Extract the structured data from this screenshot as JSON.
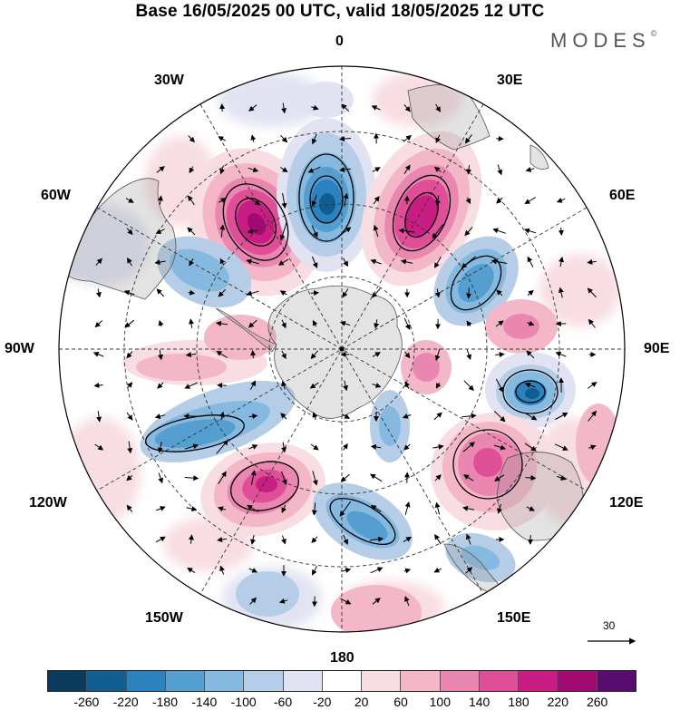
{
  "title": "Base 16/05/2025 00 UTC, valid 18/05/2025 12 UTC",
  "brand": {
    "name": "MODES",
    "mark": "©"
  },
  "map": {
    "projection": "south-polar-stereographic",
    "longitude_labels": {
      "top": "0",
      "top_left": "30W",
      "top_right": "30E",
      "upper_left": "60W",
      "upper_right": "60E",
      "left": "90W",
      "right": "90E",
      "lower_left": "120W",
      "lower_right": "120E",
      "bottom_left": "150W",
      "bottom_right": "150E",
      "bottom": "180"
    },
    "reference_vector": "30"
  },
  "colorbar": {
    "colors": [
      "#0a3b5c",
      "#125d8f",
      "#2b82bf",
      "#559fd0",
      "#86b9df",
      "#b6cde8",
      "#e1e3f2",
      "#ffffff",
      "#f8dde2",
      "#f3b7c8",
      "#ea87b0",
      "#de4f98",
      "#c81d82",
      "#a10b71",
      "#5a0b6f"
    ],
    "ticks": [
      "-260",
      "-220",
      "-180",
      "-140",
      "-100",
      "-60",
      "-20",
      "20",
      "60",
      "100",
      "140",
      "180",
      "220",
      "260"
    ]
  }
}
